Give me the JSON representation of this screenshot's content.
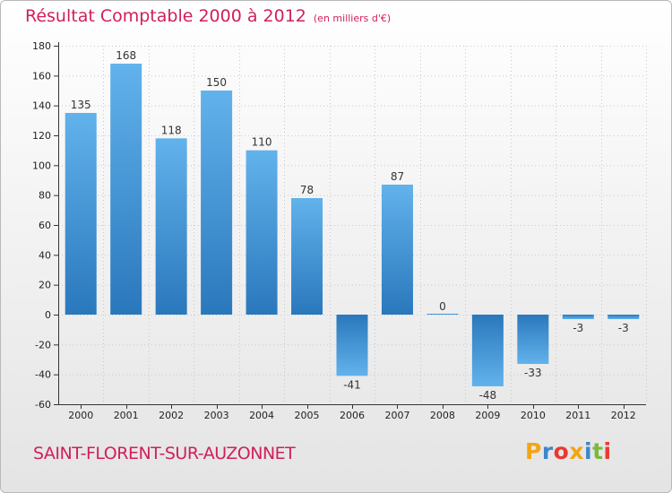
{
  "title": "Résultat Comptable 2000 à 2012",
  "subtitle": "(en milliers d'€)",
  "commune": "SAINT-FLORENT-SUR-AUZONNET",
  "logo": {
    "letters": [
      "P",
      "r",
      "o",
      "x",
      "i",
      "t",
      "i"
    ],
    "colors": [
      "#f2a516",
      "#3f86c9",
      "#e83a30",
      "#f2a516",
      "#3f86c9",
      "#7bb93a",
      "#e83a30"
    ]
  },
  "colors": {
    "title": "#d0205a",
    "bar_light": "#62b2ec",
    "bar_dark": "#2a78bc",
    "axis": "#333333",
    "grid": "#c8c8c8"
  },
  "chart_data": {
    "type": "bar",
    "title": "Résultat Comptable 2000 à 2012",
    "xlabel": "",
    "ylabel": "",
    "categories": [
      "2000",
      "2001",
      "2002",
      "2003",
      "2004",
      "2005",
      "2006",
      "2007",
      "2008",
      "2009",
      "2010",
      "2011",
      "2012"
    ],
    "values": [
      135,
      168,
      118,
      150,
      110,
      78,
      -41,
      87,
      0,
      -48,
      -33,
      -3,
      -3
    ],
    "ylim": [
      -60,
      180
    ],
    "yticks": [
      -60,
      -40,
      -20,
      0,
      20,
      40,
      60,
      80,
      100,
      120,
      140,
      160,
      180
    ],
    "grid": true
  }
}
